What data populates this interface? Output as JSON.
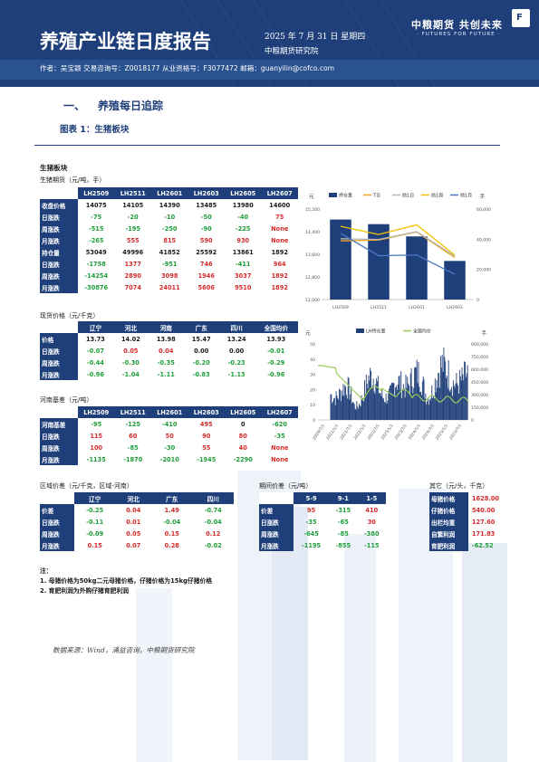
{
  "header": {
    "title": "养殖产业链日度报告",
    "date": "2025 年 7 月 31 日 星期四",
    "org": "中粮期货研究院",
    "logo_cn": "中粮期货  共创未来",
    "logo_en": "· FUTURES FOR FUTURE ·",
    "logo_mark": "F",
    "author_line": "作者：吴宝颖    交易咨询号：Z0018177  从业资格号：F3077472    邮箱：guanyilin@cofco.com"
  },
  "section": {
    "num": "一、",
    "title": "养殖每日追踪"
  },
  "figure_title": "图表 1：生猪板块",
  "block_title": "生猪板块",
  "futures": {
    "title": "生猪期货（元/吨，手）",
    "columns": [
      "LH2509",
      "LH2511",
      "LH2601",
      "LH2603",
      "LH2605",
      "LH2607"
    ],
    "rows": [
      {
        "label": "收盘价格",
        "values": [
          "14075",
          "14105",
          "14390",
          "13485",
          "13980",
          "14600"
        ],
        "cls": [
          "plain",
          "plain",
          "plain",
          "plain",
          "plain",
          "plain"
        ]
      },
      {
        "label": "日涨跌",
        "values": [
          "-75",
          "-20",
          "-10",
          "-50",
          "-40",
          "75"
        ],
        "cls": [
          "neg",
          "neg",
          "neg",
          "neg",
          "neg",
          "pos"
        ]
      },
      {
        "label": "周涨跌",
        "values": [
          "-515",
          "-195",
          "-250",
          "-90",
          "-225",
          "None"
        ],
        "cls": [
          "neg",
          "neg",
          "neg",
          "neg",
          "neg",
          "none"
        ]
      },
      {
        "label": "月涨跌",
        "values": [
          "-265",
          "555",
          "815",
          "590",
          "930",
          "None"
        ],
        "cls": [
          "neg",
          "pos",
          "pos",
          "pos",
          "pos",
          "none"
        ]
      },
      {
        "label": "持仓量",
        "values": [
          "53049",
          "49996",
          "41852",
          "25592",
          "13861",
          "1892"
        ],
        "cls": [
          "plain",
          "plain",
          "plain",
          "plain",
          "plain",
          "plain"
        ]
      },
      {
        "label": "日涨跌",
        "values": [
          "-1758",
          "1377",
          "-951",
          "746",
          "-411",
          "964"
        ],
        "cls": [
          "neg",
          "pos",
          "neg",
          "pos",
          "neg",
          "pos"
        ]
      },
      {
        "label": "周涨跌",
        "values": [
          "-14254",
          "2890",
          "3098",
          "1946",
          "3037",
          "1892"
        ],
        "cls": [
          "neg",
          "pos",
          "pos",
          "pos",
          "pos",
          "pos"
        ]
      },
      {
        "label": "月涨跌",
        "values": [
          "-30876",
          "7074",
          "24011",
          "5606",
          "9510",
          "1892"
        ],
        "cls": [
          "neg",
          "pos",
          "pos",
          "pos",
          "pos",
          "pos"
        ]
      }
    ]
  },
  "spot": {
    "title": "现货价格（元/千克）",
    "columns": [
      "辽宁",
      "河北",
      "河南",
      "广东",
      "四川",
      "全国均价"
    ],
    "rows": [
      {
        "label": "价格",
        "values": [
          "13.73",
          "14.02",
          "13.98",
          "15.47",
          "13.24",
          "13.93"
        ],
        "cls": [
          "plain",
          "plain",
          "plain",
          "plain",
          "plain",
          "plain"
        ]
      },
      {
        "label": "日涨跌",
        "values": [
          "-0.07",
          "0.05",
          "0.04",
          "0.00",
          "0.00",
          "-0.01"
        ],
        "cls": [
          "neg",
          "pos",
          "pos",
          "plain",
          "plain",
          "neg"
        ]
      },
      {
        "label": "周涨跌",
        "values": [
          "-0.44",
          "-0.30",
          "-0.35",
          "-0.20",
          "-0.23",
          "-0.29"
        ],
        "cls": [
          "neg",
          "neg",
          "neg",
          "neg",
          "neg",
          "neg"
        ]
      },
      {
        "label": "月涨跌",
        "values": [
          "-0.96",
          "-1.04",
          "-1.11",
          "-0.83",
          "-1.13",
          "-0.96"
        ],
        "cls": [
          "neg",
          "neg",
          "neg",
          "neg",
          "neg",
          "neg"
        ]
      }
    ]
  },
  "basis": {
    "title": "河南基差（元/吨）",
    "columns": [
      "LH2509",
      "LH2511",
      "LH2601",
      "LH2603",
      "LH2605",
      "LH2607"
    ],
    "rows": [
      {
        "label": "河南基差",
        "values": [
          "-95",
          "-125",
          "-410",
          "495",
          "0",
          "-620"
        ],
        "cls": [
          "neg",
          "neg",
          "neg",
          "pos",
          "plain",
          "neg"
        ]
      },
      {
        "label": "日涨跌",
        "values": [
          "115",
          "60",
          "50",
          "90",
          "80",
          "-35"
        ],
        "cls": [
          "pos",
          "pos",
          "pos",
          "pos",
          "pos",
          "neg"
        ]
      },
      {
        "label": "周涨跌",
        "values": [
          "100",
          "-85",
          "-30",
          "55",
          "40",
          "None"
        ],
        "cls": [
          "pos",
          "neg",
          "neg",
          "pos",
          "pos",
          "none"
        ]
      },
      {
        "label": "月涨跌",
        "values": [
          "-1135",
          "-1870",
          "-2010",
          "-1945",
          "-2290",
          "None"
        ],
        "cls": [
          "neg",
          "neg",
          "neg",
          "neg",
          "neg",
          "none"
        ]
      }
    ]
  },
  "region_spread": {
    "title": "区域价差（元/千克，区域-河南）",
    "columns": [
      "辽宁",
      "河北",
      "广东",
      "四川"
    ],
    "rows": [
      {
        "label": "价差",
        "values": [
          "-0.25",
          "0.04",
          "1.49",
          "-0.74"
        ],
        "cls": [
          "neg",
          "pos",
          "pos",
          "neg"
        ]
      },
      {
        "label": "日涨跌",
        "values": [
          "-0.11",
          "0.01",
          "-0.04",
          "-0.04"
        ],
        "cls": [
          "neg",
          "pos",
          "neg",
          "neg"
        ]
      },
      {
        "label": "周涨跌",
        "values": [
          "-0.09",
          "0.05",
          "0.15",
          "0.12"
        ],
        "cls": [
          "neg",
          "pos",
          "pos",
          "pos"
        ]
      },
      {
        "label": "月涨跌",
        "values": [
          "0.15",
          "0.07",
          "0.28",
          "-0.02"
        ],
        "cls": [
          "pos",
          "pos",
          "pos",
          "neg"
        ]
      }
    ]
  },
  "calendar_spread": {
    "title": "期间价差（元/吨）",
    "columns": [
      "5-9",
      "9-1",
      "1-5"
    ],
    "rows": [
      {
        "label": "价差",
        "values": [
          "95",
          "-315",
          "410"
        ],
        "cls": [
          "pos",
          "neg",
          "pos"
        ]
      },
      {
        "label": "日涨跌",
        "values": [
          "-35",
          "-65",
          "30"
        ],
        "cls": [
          "neg",
          "neg",
          "pos"
        ]
      },
      {
        "label": "周涨跌",
        "values": [
          "-645",
          "-85",
          "-380"
        ],
        "cls": [
          "neg",
          "neg",
          "neg"
        ]
      },
      {
        "label": "月涨跌",
        "values": [
          "-1195",
          "-855",
          "-115"
        ],
        "cls": [
          "neg",
          "neg",
          "neg"
        ]
      }
    ]
  },
  "other": {
    "title": "其它（元/头，千克）",
    "rows": [
      {
        "label": "母猪价格",
        "value": "1628.00",
        "cls": "pos"
      },
      {
        "label": "仔猪价格",
        "value": "540.00",
        "cls": "pos"
      },
      {
        "label": "出栏均重",
        "value": "127.60",
        "cls": "pos"
      },
      {
        "label": "自繁利润",
        "value": "171.83",
        "cls": "pos"
      },
      {
        "label": "育肥利润",
        "value": "-62.52",
        "cls": "neg"
      }
    ]
  },
  "notes": {
    "heading": "注：",
    "items": [
      "1. 母猪价格为50kg二元母猪价格，仔猪价格为15kg仔猪价格",
      "2. 育肥利润为外购仔猪育肥利润"
    ]
  },
  "source": "数据来源：Wind，涌益咨询，中粮期货研究院",
  "colors": {
    "primary": "#1f3f7a",
    "positive": "#d62b2b",
    "negative": "#1d9e38",
    "bar": "#1f3f7a",
    "line_orange": "#f5a623",
    "line_gray": "#b5b5b5",
    "line_yellow": "#f2c200",
    "line_blue": "#4a78c4",
    "spot_line": "#9acd5a"
  },
  "chart_data": [
    {
      "type": "bar",
      "categories": [
        "LH2509",
        "LH2511",
        "LH2601",
        "LH2603"
      ],
      "yleft_unit": "元",
      "yright_unit": "手",
      "yleft_ticks": [
        "12,000",
        "12,800",
        "13,600",
        "14,400",
        "15,200"
      ],
      "yright_ticks": [
        "0",
        "20,000",
        "40,000",
        "60,000"
      ],
      "yleft_lim": [
        12000,
        15200
      ],
      "yright_lim": [
        0,
        60000
      ],
      "bar_series": {
        "name": "持仓量",
        "values": [
          53049,
          49996,
          41852,
          25592
        ]
      },
      "line_series": [
        {
          "name": "T日",
          "values": [
            14075,
            14105,
            14390,
            13485
          ]
        },
        {
          "name": "前1日",
          "values": [
            14150,
            14125,
            14400,
            13535
          ]
        },
        {
          "name": "前1周",
          "values": [
            14590,
            14300,
            14640,
            13575
          ]
        },
        {
          "name": "前1月",
          "values": [
            14340,
            13550,
            13575,
            12895
          ]
        }
      ],
      "legend_position": "top"
    },
    {
      "type": "line",
      "x_ticks": [
        "2020/7/1",
        "2021/1/1",
        "2021/7/1",
        "2022/1/1",
        "2022/7/1",
        "2023/1/1",
        "2023/7/1",
        "2024/1/1",
        "2024/7/1",
        "2025/1/1",
        "2025/7/1"
      ],
      "yleft_unit": "元",
      "yright_unit": "手",
      "yleft_ticks": [
        "0",
        "10",
        "20",
        "30",
        "40",
        "50"
      ],
      "yright_ticks": [
        "0",
        "150,000",
        "300,000",
        "450,000",
        "600,000",
        "750,000",
        "900,000"
      ],
      "yleft_lim": [
        0,
        50
      ],
      "yright_lim": [
        0,
        900000
      ],
      "series": [
        {
          "name": "LH持仓量",
          "kind": "area"
        },
        {
          "name": "全国均价",
          "kind": "line"
        }
      ],
      "legend_position": "top"
    }
  ]
}
